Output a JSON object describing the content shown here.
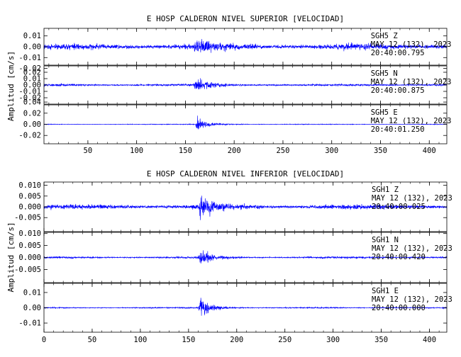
{
  "chart_data": [
    {
      "type": "line",
      "title": "E HOSP CALDERON NIVEL SUPERIOR [VELOCIDAD]",
      "ylabel": "Amplitud [cm/s]",
      "xlabel": "",
      "xlim": [
        5,
        418
      ],
      "x_ticks": [
        "50",
        "100",
        "150",
        "200",
        "250",
        "300",
        "350",
        "400"
      ],
      "color": "#0000ff",
      "series": [
        {
          "name": "SGH5 Z",
          "station": "SGH5",
          "component": "Z",
          "date_line": "MAY 12 (132), 2023",
          "time_line": "20:40:00.795",
          "ylim": [
            -0.017,
            0.017
          ],
          "y_ticks": [
            "0.01",
            "0.00",
            "-0.01",
            "-0.02"
          ],
          "noise_amplitude": 0.0055,
          "event_onset_s": 158,
          "event_peak_amplitude": 0.013
        },
        {
          "name": "SGH5 N",
          "station": "SGH5",
          "component": "N",
          "date_line": "MAY 12 (132), 2023",
          "time_line": "20:40:00.875",
          "ylim": [
            -0.03,
            0.03
          ],
          "y_ticks": [
            "0.02",
            "0.01",
            "0.00",
            "-0.01",
            "-0.02"
          ],
          "noise_amplitude": 0.0035,
          "event_onset_s": 158,
          "event_peak_amplitude": 0.026
        },
        {
          "name": "SGH5 E",
          "station": "SGH5",
          "component": "E",
          "date_line": "MAY 12 (132), 2023",
          "time_line": "20:40:01.250",
          "ylim": [
            -0.035,
            0.035
          ],
          "y_ticks": [
            "0.04",
            "0.02",
            "0.00",
            "-0.02"
          ],
          "noise_amplitude": 0.0012,
          "event_onset_s": 160,
          "event_peak_amplitude": 0.024
        }
      ]
    },
    {
      "type": "line",
      "title": "E HOSP CALDERON NIVEL INFERIOR [VELOCIDAD]",
      "ylabel": "Amplitud [cm/s]",
      "xlabel": "",
      "xlim": [
        0,
        418
      ],
      "x_ticks": [
        "0",
        "50",
        "100",
        "150",
        "200",
        "250",
        "300",
        "350",
        "400"
      ],
      "color": "#0000ff",
      "series": [
        {
          "name": "SGH1 Z",
          "station": "SGH1",
          "component": "Z",
          "date_line": "MAY 12 (132), 2023",
          "time_line": "20:40:00.025",
          "ylim": [
            -0.0115,
            0.0115
          ],
          "y_ticks": [
            "0.010",
            "0.005",
            "0.000",
            "-0.005"
          ],
          "noise_amplitude": 0.0022,
          "event_onset_s": 160,
          "event_peak_amplitude": 0.0105
        },
        {
          "name": "SGH1 N",
          "station": "SGH1",
          "component": "N",
          "date_line": "MAY 12 (132), 2023",
          "time_line": "20:40:00.420",
          "ylim": [
            -0.0105,
            0.0105
          ],
          "y_ticks": [
            "0.010",
            "0.005",
            "0.000",
            "-0.005"
          ],
          "noise_amplitude": 0.0008,
          "event_onset_s": 160,
          "event_peak_amplitude": 0.0075
        },
        {
          "name": "SGH1 E",
          "station": "SGH1",
          "component": "E",
          "date_line": "MAY 12 (132), 2023",
          "time_line": "20:40:00.000",
          "ylim": [
            -0.016,
            0.016
          ],
          "y_ticks": [
            "0.01",
            "0.00",
            "-0.01"
          ],
          "noise_amplitude": 0.0008,
          "event_onset_s": 160,
          "event_peak_amplitude": 0.013
        }
      ]
    }
  ]
}
